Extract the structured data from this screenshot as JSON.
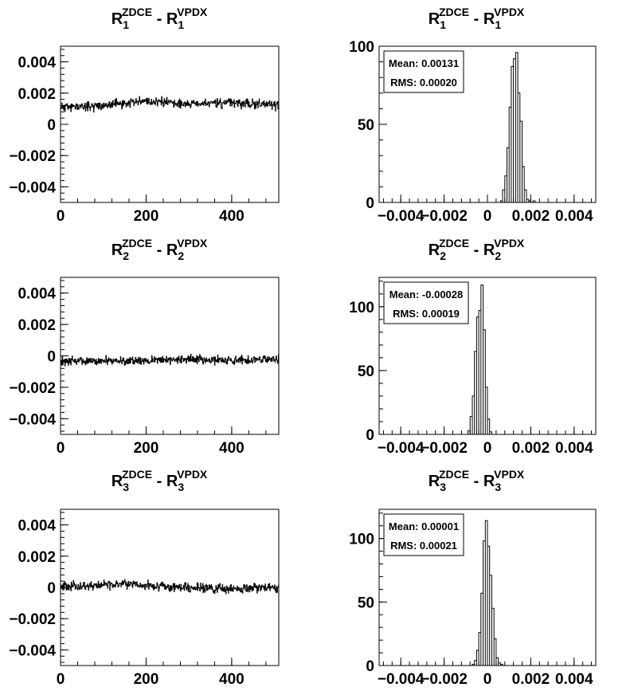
{
  "page": {
    "background": "#ffffff",
    "line_color": "#000000"
  },
  "chart_data": [
    {
      "id": "ts1",
      "type": "line",
      "title": {
        "base": "R",
        "sub": "1",
        "sup": "ZDCE",
        "mid": " - ",
        "base2": "R",
        "sub2": "1",
        "sup2": "VPDX"
      },
      "xlim": [
        0,
        510
      ],
      "ylim": [
        -0.005,
        0.005
      ],
      "xticks": [
        0,
        200,
        400
      ],
      "xtick_labels": [
        "0",
        "200",
        "400"
      ],
      "yticks": [
        0.004,
        0.002,
        0,
        -0.002,
        -0.004
      ],
      "ytick_labels": [
        "0.004",
        "0.002",
        "0",
        "−0.002",
        "−0.004"
      ],
      "n_points": 510,
      "baseline": [
        [
          0,
          0.0011
        ],
        [
          100,
          0.0012
        ],
        [
          200,
          0.0015
        ],
        [
          300,
          0.0013
        ],
        [
          400,
          0.0014
        ],
        [
          510,
          0.0012
        ]
      ],
      "noise": 0.00022,
      "seed": 11
    },
    {
      "id": "h1",
      "type": "histogram",
      "title": {
        "base": "R",
        "sub": "1",
        "sup": "ZDCE",
        "mid": " - ",
        "base2": "R",
        "sub2": "1",
        "sup2": "VPDX"
      },
      "xlim": [
        -0.005,
        0.005
      ],
      "ylim": [
        0,
        100
      ],
      "xticks": [
        -0.004,
        -0.002,
        0,
        0.002,
        0.004
      ],
      "xtick_labels": [
        "−0.004",
        "−0.002",
        "0",
        "0.002",
        "0.004"
      ],
      "yticks": [
        0,
        50,
        100
      ],
      "ytick_labels": [
        "0",
        "50",
        "100"
      ],
      "bin_width": 0.0001,
      "bins": [
        [
          0.0006,
          1
        ],
        [
          0.0007,
          8
        ],
        [
          0.0008,
          17
        ],
        [
          0.0009,
          35
        ],
        [
          0.001,
          61
        ],
        [
          0.0011,
          87
        ],
        [
          0.0012,
          92
        ],
        [
          0.0013,
          96
        ],
        [
          0.0014,
          70
        ],
        [
          0.0015,
          52
        ],
        [
          0.0016,
          23
        ],
        [
          0.0017,
          8
        ],
        [
          0.0018,
          2
        ],
        [
          0.0019,
          1
        ],
        [
          0.0021,
          1
        ]
      ],
      "stats": {
        "mean": "Mean: 0.00131",
        "rms": "RMS: 0.00020"
      }
    },
    {
      "id": "ts2",
      "type": "line",
      "title": {
        "base": "R",
        "sub": "2",
        "sup": "ZDCE",
        "mid": " - ",
        "base2": "R",
        "sub2": "2",
        "sup2": "VPDX"
      },
      "xlim": [
        0,
        510
      ],
      "ylim": [
        -0.005,
        0.005
      ],
      "xticks": [
        0,
        200,
        400
      ],
      "xtick_labels": [
        "0",
        "200",
        "400"
      ],
      "yticks": [
        0.004,
        0.002,
        0,
        -0.002,
        -0.004
      ],
      "ytick_labels": [
        "0.004",
        "0.002",
        "0",
        "−0.002",
        "−0.004"
      ],
      "n_points": 510,
      "baseline": [
        [
          0,
          -0.0003
        ],
        [
          150,
          -0.00035
        ],
        [
          300,
          -0.0002
        ],
        [
          400,
          -0.0003
        ],
        [
          510,
          -0.0002
        ]
      ],
      "noise": 0.0002,
      "seed": 22
    },
    {
      "id": "h2",
      "type": "histogram",
      "title": {
        "base": "R",
        "sub": "2",
        "sup": "ZDCE",
        "mid": " - ",
        "base2": "R",
        "sub2": "2",
        "sup2": "VPDX"
      },
      "xlim": [
        -0.005,
        0.005
      ],
      "ylim": [
        0,
        123
      ],
      "xticks": [
        -0.004,
        -0.002,
        0,
        0.002,
        0.004
      ],
      "xtick_labels": [
        "−0.004",
        "−0.002",
        "0",
        "0.002",
        "0.004"
      ],
      "yticks": [
        0,
        50,
        100
      ],
      "ytick_labels": [
        "0",
        "50",
        "100"
      ],
      "bin_width": 0.0001,
      "bins": [
        [
          -0.0009,
          3
        ],
        [
          -0.0008,
          14
        ],
        [
          -0.0007,
          30
        ],
        [
          -0.0006,
          65
        ],
        [
          -0.0005,
          92
        ],
        [
          -0.0004,
          97
        ],
        [
          -0.0003,
          117
        ],
        [
          -0.0002,
          82
        ],
        [
          -0.0001,
          37
        ],
        [
          0.0,
          12
        ],
        [
          0.0001,
          2
        ]
      ],
      "stats": {
        "mean": "Mean: -0.00028",
        "rms": "RMS: 0.00019"
      }
    },
    {
      "id": "ts3",
      "type": "line",
      "title": {
        "base": "R",
        "sub": "3",
        "sup": "ZDCE",
        "mid": " - ",
        "base2": "R",
        "sub2": "3",
        "sup2": "VPDX"
      },
      "xlim": [
        0,
        510
      ],
      "ylim": [
        -0.005,
        0.005
      ],
      "xticks": [
        0,
        200,
        400
      ],
      "xtick_labels": [
        "0",
        "200",
        "400"
      ],
      "yticks": [
        0.004,
        0.002,
        0,
        -0.002,
        -0.004
      ],
      "ytick_labels": [
        "0.004",
        "0.002",
        "0",
        "−0.002",
        "−0.004"
      ],
      "n_points": 510,
      "baseline": [
        [
          0,
          5e-05
        ],
        [
          150,
          0.0002
        ],
        [
          300,
          0.0
        ],
        [
          400,
          -0.0001
        ],
        [
          510,
          0.0
        ]
      ],
      "noise": 0.00022,
      "seed": 33
    },
    {
      "id": "h3",
      "type": "histogram",
      "title": {
        "base": "R",
        "sub": "3",
        "sup": "ZDCE",
        "mid": " - ",
        "base2": "R",
        "sub2": "3",
        "sup2": "VPDX"
      },
      "xlim": [
        -0.005,
        0.005
      ],
      "ylim": [
        0,
        123
      ],
      "xticks": [
        -0.004,
        -0.002,
        0,
        0.002,
        0.004
      ],
      "xtick_labels": [
        "−0.004",
        "−0.002",
        "0",
        "0.002",
        "0.004"
      ],
      "yticks": [
        0,
        50,
        100
      ],
      "ytick_labels": [
        "0",
        "50",
        "100"
      ],
      "bin_width": 0.0001,
      "bins": [
        [
          -0.0007,
          1
        ],
        [
          -0.0006,
          4
        ],
        [
          -0.0005,
          12
        ],
        [
          -0.0004,
          26
        ],
        [
          -0.0003,
          57
        ],
        [
          -0.0002,
          98
        ],
        [
          -0.0001,
          114
        ],
        [
          0.0,
          94
        ],
        [
          0.0001,
          71
        ],
        [
          0.0002,
          45
        ],
        [
          0.0003,
          21
        ],
        [
          0.0004,
          6
        ],
        [
          0.0005,
          2
        ],
        [
          0.0006,
          1
        ]
      ],
      "stats": {
        "mean": "Mean: 0.00001",
        "rms": "RMS: 0.00021"
      }
    }
  ]
}
